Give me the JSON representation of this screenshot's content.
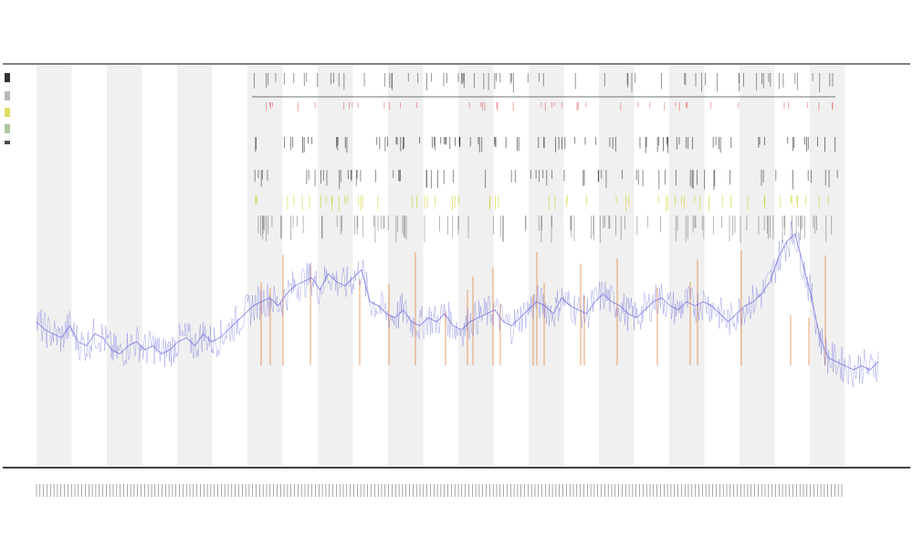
{
  "chart_data": {
    "type": "line",
    "title": "",
    "subtitle_1": "",
    "subtitle_2": "",
    "xlabel": "",
    "ylabel": "",
    "grid": false,
    "legend_position": "top-left",
    "background_bands": {
      "count": 12,
      "color": "#f0f0f0"
    },
    "series": [
      {
        "color": "#5b5bdc",
        "kind": "line",
        "values": [
          0.36,
          0.34,
          0.33,
          0.32,
          0.35,
          0.31,
          0.3,
          0.33,
          0.32,
          0.29,
          0.28,
          0.3,
          0.31,
          0.29,
          0.3,
          0.28,
          0.29,
          0.31,
          0.32,
          0.3,
          0.33,
          0.31,
          0.32,
          0.34,
          0.36,
          0.38,
          0.4,
          0.41,
          0.42,
          0.4,
          0.43,
          0.45,
          0.46,
          0.47,
          0.44,
          0.48,
          0.46,
          0.45,
          0.47,
          0.49,
          0.41,
          0.4,
          0.38,
          0.37,
          0.39,
          0.36,
          0.35,
          0.37,
          0.36,
          0.38,
          0.35,
          0.34,
          0.36,
          0.37,
          0.38,
          0.39,
          0.36,
          0.35,
          0.37,
          0.39,
          0.41,
          0.4,
          0.38,
          0.42,
          0.4,
          0.39,
          0.38,
          0.41,
          0.43,
          0.41,
          0.4,
          0.38,
          0.37,
          0.39,
          0.41,
          0.42,
          0.4,
          0.39,
          0.41,
          0.4,
          0.41,
          0.4,
          0.38,
          0.36,
          0.38,
          0.4,
          0.41,
          0.43,
          0.46,
          0.52,
          0.56,
          0.58,
          0.5,
          0.42,
          0.32,
          0.27,
          0.26,
          0.25,
          0.24,
          0.25,
          0.24,
          0.26
        ]
      },
      {
        "color": "#e07020",
        "kind": "spikes"
      },
      {
        "color": "#c8c800",
        "kind": "ticks"
      },
      {
        "color": "#000000",
        "kind": "ticks"
      },
      {
        "color": "#e03030",
        "kind": "ticks"
      }
    ]
  }
}
